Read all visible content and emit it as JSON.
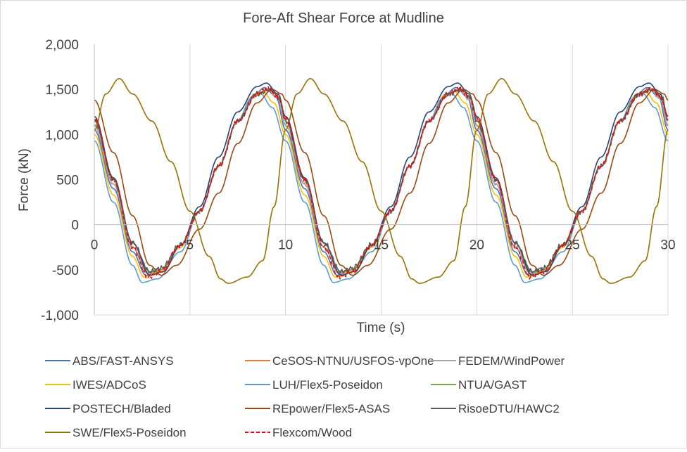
{
  "chart_data": {
    "type": "line",
    "title": "Fore-Aft Shear Force at Mudline",
    "xlabel": "Time (s)",
    "ylabel": "Force (kN)",
    "xlim": [
      0,
      30
    ],
    "ylim": [
      -1000,
      2000
    ],
    "x_ticks": [
      0,
      5,
      10,
      15,
      20,
      25,
      30
    ],
    "x_tick_labels": [
      "0",
      "5",
      "10",
      "15",
      "20",
      "25",
      "30"
    ],
    "y_ticks": [
      -1000,
      -500,
      0,
      500,
      1000,
      1500,
      2000
    ],
    "y_tick_labels": [
      "-1,000",
      "-500",
      "0",
      "500",
      "1,000",
      "1,500",
      "2,000"
    ],
    "grid": "vertical",
    "legend_position": "bottom",
    "period_s": 10,
    "series": [
      {
        "name": "ABS/FAST-ANSYS",
        "color": "#4472c4",
        "dash": "",
        "noise": 0,
        "cycle": [
          [
            0,
            1050
          ],
          [
            1,
            400
          ],
          [
            2,
            -300
          ],
          [
            2.7,
            -560
          ],
          [
            3.5,
            -520
          ],
          [
            4.5,
            -250
          ],
          [
            5.5,
            150
          ],
          [
            6.5,
            650
          ],
          [
            7.5,
            1150
          ],
          [
            8.4,
            1450
          ],
          [
            8.9,
            1520
          ],
          [
            9.5,
            1420
          ],
          [
            10,
            1050
          ]
        ]
      },
      {
        "name": "CeSOS-NTNU/USFOS-vpOne",
        "color": "#ed7d31",
        "dash": "",
        "noise": 0,
        "cycle": [
          [
            0,
            1100
          ],
          [
            1,
            450
          ],
          [
            2,
            -250
          ],
          [
            2.8,
            -540
          ],
          [
            3.5,
            -500
          ],
          [
            4.5,
            -230
          ],
          [
            5.5,
            150
          ],
          [
            6.5,
            650
          ],
          [
            7.5,
            1150
          ],
          [
            8.5,
            1450
          ],
          [
            9.1,
            1500
          ],
          [
            9.6,
            1400
          ],
          [
            10,
            1100
          ]
        ]
      },
      {
        "name": "FEDEM/WindPower",
        "color": "#a5a5a5",
        "dash": "",
        "noise": 20,
        "cycle": [
          [
            0,
            1100
          ],
          [
            1,
            450
          ],
          [
            2,
            -250
          ],
          [
            2.8,
            -530
          ],
          [
            3.5,
            -500
          ],
          [
            4.5,
            -230
          ],
          [
            5.5,
            150
          ],
          [
            6.5,
            650
          ],
          [
            7.5,
            1150
          ],
          [
            8.5,
            1440
          ],
          [
            9.1,
            1490
          ],
          [
            9.6,
            1390
          ],
          [
            10,
            1100
          ]
        ]
      },
      {
        "name": "IWES/ADCoS",
        "color": "#ffc000",
        "dash": "",
        "noise": 0,
        "cycle": [
          [
            0,
            1000
          ],
          [
            1,
            330
          ],
          [
            2,
            -350
          ],
          [
            2.6,
            -580
          ],
          [
            3.5,
            -520
          ],
          [
            4.5,
            -250
          ],
          [
            5.5,
            150
          ],
          [
            6.5,
            650
          ],
          [
            7.5,
            1150
          ],
          [
            8.3,
            1430
          ],
          [
            8.8,
            1480
          ],
          [
            9.4,
            1350
          ],
          [
            10,
            1000
          ]
        ]
      },
      {
        "name": "LUH/Flex5-Poseidon",
        "color": "#5b9bd5",
        "dash": "",
        "noise": 0,
        "cycle": [
          [
            0,
            930
          ],
          [
            1,
            250
          ],
          [
            2,
            -450
          ],
          [
            2.5,
            -640
          ],
          [
            3.3,
            -600
          ],
          [
            4.5,
            -300
          ],
          [
            5.5,
            150
          ],
          [
            6.5,
            650
          ],
          [
            7.5,
            1150
          ],
          [
            8.2,
            1400
          ],
          [
            8.7,
            1450
          ],
          [
            9.3,
            1300
          ],
          [
            10,
            930
          ]
        ]
      },
      {
        "name": "NTUA/GAST",
        "color": "#70ad47",
        "dash": "",
        "noise": 0,
        "cycle": [
          [
            0,
            1150
          ],
          [
            1,
            500
          ],
          [
            2,
            -200
          ],
          [
            2.9,
            -520
          ],
          [
            3.5,
            -500
          ],
          [
            4.5,
            -230
          ],
          [
            5.5,
            150
          ],
          [
            6.5,
            650
          ],
          [
            7.5,
            1150
          ],
          [
            8.5,
            1450
          ],
          [
            9.2,
            1500
          ],
          [
            9.7,
            1400
          ],
          [
            10,
            1150
          ]
        ]
      },
      {
        "name": "POSTECH/Bladed",
        "color": "#264478",
        "dash": "",
        "noise": 0,
        "cycle": [
          [
            0,
            1200
          ],
          [
            1,
            520
          ],
          [
            2,
            -200
          ],
          [
            2.9,
            -560
          ],
          [
            3.6,
            -520
          ],
          [
            4.5,
            -230
          ],
          [
            5.5,
            200
          ],
          [
            6.5,
            750
          ],
          [
            7.5,
            1250
          ],
          [
            8.5,
            1530
          ],
          [
            9,
            1570
          ],
          [
            9.6,
            1450
          ],
          [
            10,
            1200
          ]
        ]
      },
      {
        "name": "REpower/Flex5-ASAS",
        "color": "#9e480e",
        "dash": "",
        "noise": 0,
        "cycle": [
          [
            0,
            1380
          ],
          [
            1,
            800
          ],
          [
            2,
            100
          ],
          [
            2.9,
            -450
          ],
          [
            3.5,
            -560
          ],
          [
            4.3,
            -450
          ],
          [
            5.5,
            -50
          ],
          [
            6.5,
            350
          ],
          [
            7.5,
            900
          ],
          [
            8.5,
            1350
          ],
          [
            9.3,
            1500
          ],
          [
            9.8,
            1450
          ],
          [
            10,
            1380
          ]
        ]
      },
      {
        "name": "RisoeDTU/HAWC2",
        "color": "#595959",
        "dash": "",
        "noise": 30,
        "cycle": [
          [
            0,
            1150
          ],
          [
            1,
            500
          ],
          [
            2,
            -200
          ],
          [
            2.9,
            -520
          ],
          [
            3.5,
            -480
          ],
          [
            4.5,
            -220
          ],
          [
            5.5,
            150
          ],
          [
            6.5,
            650
          ],
          [
            7.5,
            1150
          ],
          [
            8.5,
            1450
          ],
          [
            9.2,
            1500
          ],
          [
            9.7,
            1400
          ],
          [
            10,
            1150
          ]
        ]
      },
      {
        "name": "SWE/Flex5-Poseidon",
        "color": "#997300",
        "dash": "",
        "noise": 0,
        "cycle": [
          [
            0,
            1050
          ],
          [
            0.6,
            1450
          ],
          [
            1.3,
            1620
          ],
          [
            2,
            1450
          ],
          [
            3,
            1150
          ],
          [
            4,
            700
          ],
          [
            5,
            150
          ],
          [
            6,
            -350
          ],
          [
            6.6,
            -600
          ],
          [
            7,
            -650
          ],
          [
            8,
            -580
          ],
          [
            8.8,
            -400
          ],
          [
            9.4,
            200
          ],
          [
            10,
            1050
          ]
        ]
      },
      {
        "name": "Flexcom/Wood",
        "color": "#ff0000",
        "dash": "5,3",
        "noise": 30,
        "cycle": [
          [
            0,
            1180
          ],
          [
            1,
            500
          ],
          [
            2,
            -250
          ],
          [
            2.8,
            -580
          ],
          [
            3.5,
            -520
          ],
          [
            4.5,
            -230
          ],
          [
            5.5,
            150
          ],
          [
            6.5,
            650
          ],
          [
            7.5,
            1150
          ],
          [
            8.5,
            1450
          ],
          [
            9.1,
            1510
          ],
          [
            9.6,
            1420
          ],
          [
            10,
            1180
          ]
        ]
      }
    ]
  }
}
